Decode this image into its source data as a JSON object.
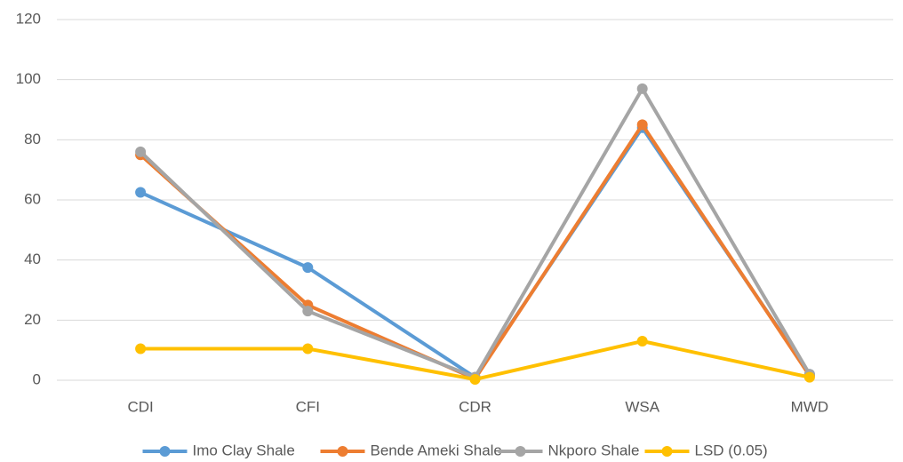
{
  "chart_data": {
    "type": "line",
    "categories": [
      "CDI",
      "CFI",
      "CDR",
      "WSA",
      "MWD"
    ],
    "series": [
      {
        "name": "Imo Clay Shale",
        "color": "#5b9bd5",
        "values": [
          62.5,
          37.5,
          1,
          84,
          2
        ]
      },
      {
        "name": "Bende Ameki Shale",
        "color": "#ed7d31",
        "values": [
          75,
          25,
          0.5,
          85,
          1.5
        ]
      },
      {
        "name": "Nkporo Shale",
        "color": "#a5a5a5",
        "values": [
          76,
          23,
          1,
          97,
          2
        ]
      },
      {
        "name": "LSD (0.05)",
        "color": "#ffc000",
        "values": [
          10.5,
          10.5,
          0.3,
          13,
          1
        ]
      }
    ],
    "ylim": [
      0,
      120
    ],
    "yticks": [
      0,
      20,
      40,
      60,
      80,
      100,
      120
    ],
    "grid": true,
    "legend": "bottom"
  }
}
